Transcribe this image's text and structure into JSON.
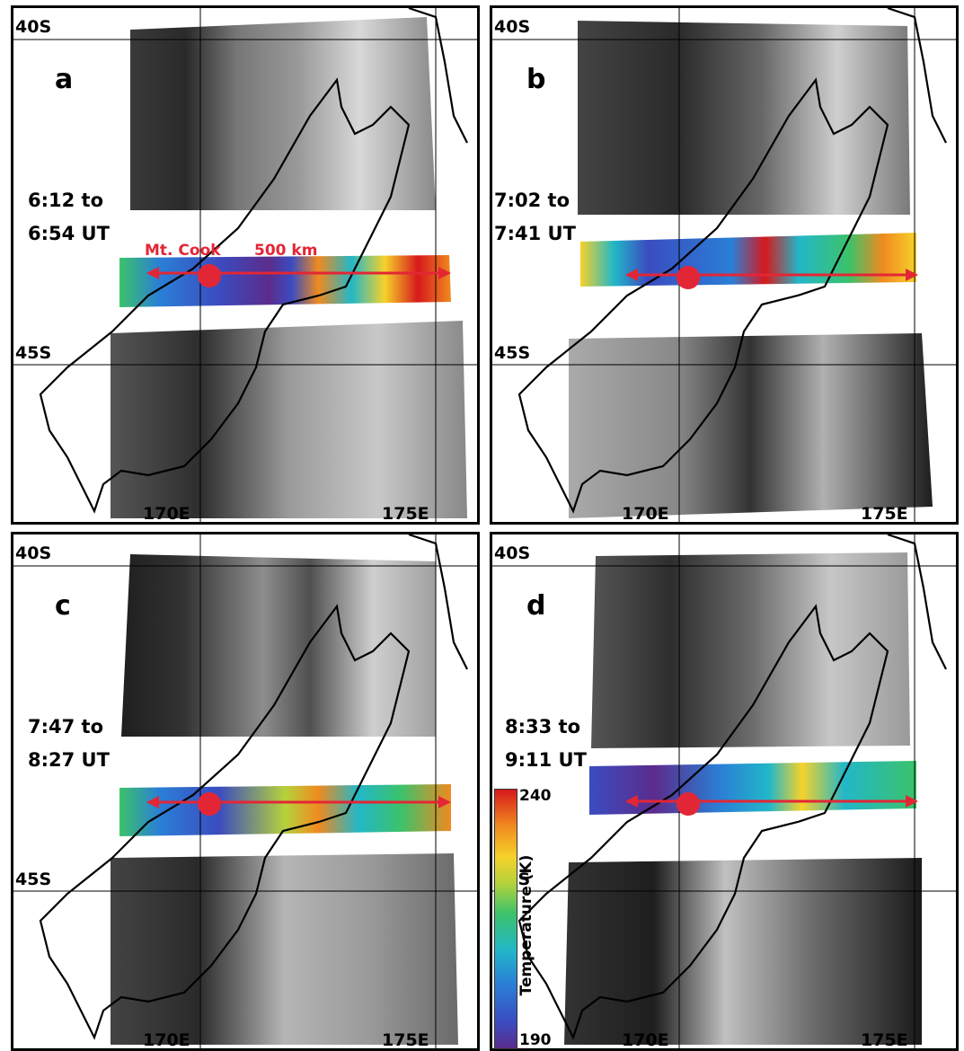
{
  "panels": [
    {
      "id": "a",
      "letter": "a",
      "lat_north": "40S",
      "lat_south": "45S",
      "lon_west": "170E",
      "lon_east": "175E",
      "time_line1": "6:12 to",
      "time_line2": "6:54 UT"
    },
    {
      "id": "b",
      "letter": "b",
      "lat_north": "40S",
      "lat_south": "45S",
      "lon_west": "170E",
      "lon_east": "175E",
      "time_line1": "7:02 to",
      "time_line2": "7:41 UT"
    },
    {
      "id": "c",
      "letter": "c",
      "lat_north": "40S",
      "lat_south": "45S",
      "lon_west": "170E",
      "lon_east": "175E",
      "time_line1": "7:47 to",
      "time_line2": "8:27 UT"
    },
    {
      "id": "d",
      "letter": "d",
      "lat_north": "40S",
      "lat_south": "45S",
      "lon_west": "170E",
      "lon_east": "175E",
      "time_line1": "8:33 to",
      "time_line2": "9:11 UT"
    }
  ],
  "annotations": {
    "mt_cook": "Mt. Cook",
    "scale": "500 km"
  },
  "colorbar": {
    "min": "190",
    "max": "240",
    "label": "Temperature (K)"
  },
  "colors": {
    "marker": "#e32636",
    "coast": "#000000"
  }
}
